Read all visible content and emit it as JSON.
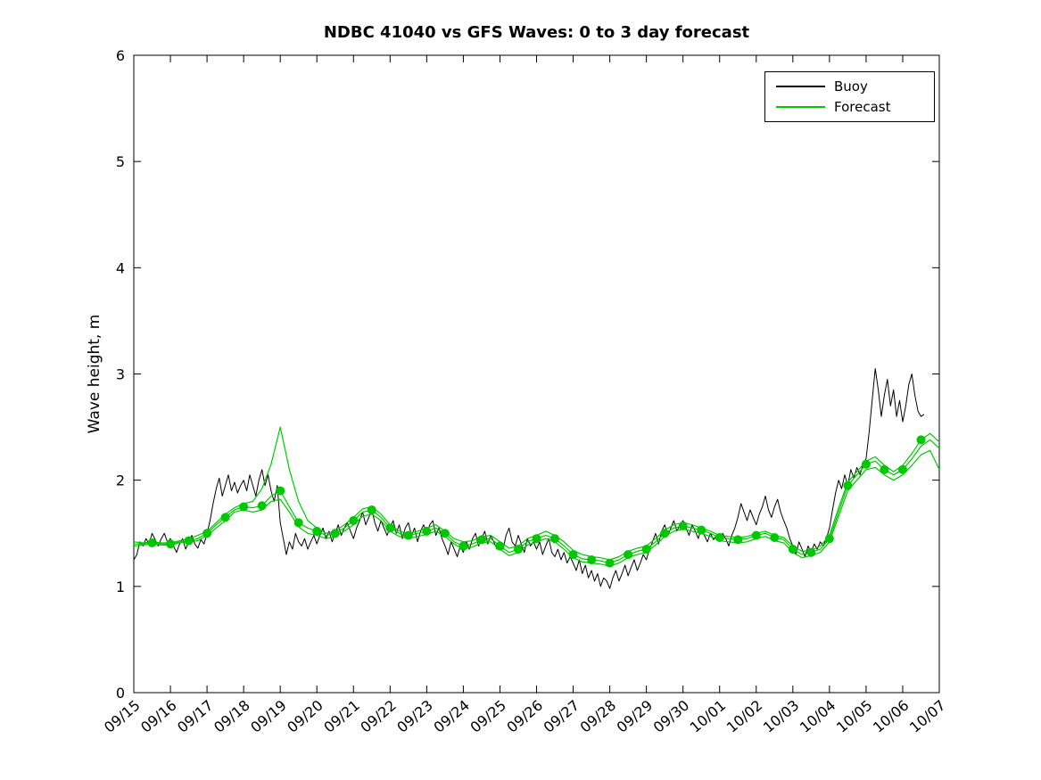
{
  "chart_data": {
    "type": "line",
    "title": "NDBC 41040 vs GFS Waves: 0 to 3 day forecast",
    "xlabel": "",
    "ylabel": "Wave height, m",
    "xlim": [
      0,
      22
    ],
    "ylim": [
      0,
      6
    ],
    "grid": false,
    "yticks": [
      0,
      1,
      2,
      3,
      4,
      5,
      6
    ],
    "xtick_labels": [
      "09/15",
      "09/16",
      "09/17",
      "09/18",
      "09/19",
      "09/20",
      "09/21",
      "09/22",
      "09/23",
      "09/24",
      "09/25",
      "09/26",
      "09/27",
      "09/28",
      "09/29",
      "09/30",
      "10/01",
      "10/02",
      "10/03",
      "10/04",
      "10/05",
      "10/06",
      "10/07"
    ],
    "legend": {
      "position": "top-right",
      "entries": [
        {
          "label": "Buoy",
          "color": "#000000"
        },
        {
          "label": "Forecast",
          "color": "#00c800"
        }
      ]
    },
    "colors": {
      "buoy": "#000000",
      "forecast": "#00c800",
      "axis": "#000000"
    },
    "series": [
      {
        "name": "Buoy",
        "kind": "line",
        "color": "#000000",
        "width": 1,
        "x_start": 0,
        "x_step": 0.083333,
        "values": [
          1.25,
          1.3,
          1.42,
          1.38,
          1.45,
          1.4,
          1.5,
          1.44,
          1.38,
          1.45,
          1.5,
          1.42,
          1.45,
          1.38,
          1.32,
          1.4,
          1.45,
          1.35,
          1.42,
          1.48,
          1.4,
          1.36,
          1.44,
          1.4,
          1.5,
          1.62,
          1.78,
          1.92,
          2.02,
          1.85,
          1.95,
          2.05,
          1.9,
          1.98,
          1.88,
          1.95,
          2.0,
          1.9,
          2.05,
          1.95,
          1.85,
          2.0,
          2.1,
          1.95,
          2.05,
          1.9,
          1.8,
          1.95,
          1.6,
          1.45,
          1.3,
          1.42,
          1.35,
          1.5,
          1.42,
          1.38,
          1.45,
          1.35,
          1.42,
          1.48,
          1.4,
          1.48,
          1.55,
          1.45,
          1.52,
          1.42,
          1.5,
          1.58,
          1.48,
          1.55,
          1.6,
          1.52,
          1.45,
          1.55,
          1.62,
          1.7,
          1.58,
          1.65,
          1.72,
          1.6,
          1.52,
          1.62,
          1.55,
          1.48,
          1.55,
          1.62,
          1.5,
          1.58,
          1.45,
          1.55,
          1.6,
          1.48,
          1.55,
          1.42,
          1.52,
          1.58,
          1.5,
          1.58,
          1.62,
          1.48,
          1.55,
          1.45,
          1.38,
          1.3,
          1.42,
          1.35,
          1.28,
          1.38,
          1.32,
          1.42,
          1.35,
          1.45,
          1.5,
          1.38,
          1.45,
          1.52,
          1.4,
          1.48,
          1.42,
          1.35,
          1.42,
          1.35,
          1.48,
          1.55,
          1.42,
          1.38,
          1.48,
          1.4,
          1.32,
          1.45,
          1.38,
          1.42,
          1.35,
          1.42,
          1.3,
          1.38,
          1.45,
          1.32,
          1.28,
          1.35,
          1.25,
          1.32,
          1.22,
          1.28,
          1.22,
          1.15,
          1.25,
          1.12,
          1.2,
          1.08,
          1.15,
          1.05,
          1.12,
          1.0,
          1.08,
          1.05,
          0.98,
          1.08,
          1.15,
          1.05,
          1.12,
          1.2,
          1.1,
          1.18,
          1.25,
          1.15,
          1.22,
          1.3,
          1.25,
          1.35,
          1.42,
          1.5,
          1.4,
          1.52,
          1.58,
          1.48,
          1.55,
          1.62,
          1.52,
          1.58,
          1.62,
          1.55,
          1.48,
          1.58,
          1.52,
          1.45,
          1.55,
          1.48,
          1.42,
          1.5,
          1.44,
          1.48,
          1.42,
          1.5,
          1.45,
          1.38,
          1.48,
          1.55,
          1.65,
          1.78,
          1.7,
          1.62,
          1.72,
          1.65,
          1.58,
          1.68,
          1.75,
          1.85,
          1.72,
          1.65,
          1.75,
          1.82,
          1.7,
          1.62,
          1.55,
          1.45,
          1.38,
          1.3,
          1.42,
          1.35,
          1.28,
          1.38,
          1.32,
          1.4,
          1.35,
          1.42,
          1.38,
          1.45,
          1.55,
          1.72,
          1.88,
          2.0,
          1.92,
          2.05,
          1.95,
          2.1,
          2.02,
          2.12,
          2.05,
          2.15,
          2.2,
          2.45,
          2.75,
          3.05,
          2.85,
          2.6,
          2.8,
          2.95,
          2.7,
          2.85,
          2.6,
          2.75,
          2.55,
          2.7,
          2.9,
          3.0,
          2.8,
          2.65,
          2.6,
          2.62
        ]
      },
      {
        "name": "Forecast member 1",
        "kind": "line",
        "color": "#00c800",
        "width": 1.2,
        "x_start": 0,
        "x_step": 0.25,
        "values": [
          1.4,
          1.4,
          1.41,
          1.4,
          1.4,
          1.42,
          1.43,
          1.45,
          1.5,
          1.58,
          1.65,
          1.72,
          1.75,
          1.74,
          1.76,
          1.85,
          1.9,
          1.75,
          1.6,
          1.55,
          1.52,
          1.48,
          1.5,
          1.55,
          1.62,
          1.7,
          1.72,
          1.65,
          1.55,
          1.5,
          1.48,
          1.5,
          1.52,
          1.55,
          1.5,
          1.42,
          1.38,
          1.4,
          1.44,
          1.45,
          1.38,
          1.32,
          1.35,
          1.42,
          1.45,
          1.48,
          1.45,
          1.38,
          1.3,
          1.26,
          1.25,
          1.24,
          1.22,
          1.25,
          1.3,
          1.33,
          1.35,
          1.42,
          1.5,
          1.55,
          1.57,
          1.55,
          1.53,
          1.5,
          1.46,
          1.45,
          1.44,
          1.45,
          1.48,
          1.5,
          1.46,
          1.44,
          1.35,
          1.3,
          1.32,
          1.35,
          1.45,
          1.7,
          1.95,
          2.05,
          2.15,
          2.18,
          2.1,
          2.05,
          2.1,
          2.2,
          2.32,
          2.38,
          2.3
        ]
      },
      {
        "name": "Forecast member 2",
        "kind": "line",
        "color": "#00c800",
        "width": 1.2,
        "x_start": 0,
        "x_step": 0.25,
        "values": [
          1.42,
          1.41,
          1.42,
          1.41,
          1.41,
          1.43,
          1.45,
          1.48,
          1.52,
          1.6,
          1.68,
          1.74,
          1.78,
          1.8,
          1.92,
          2.15,
          2.5,
          2.1,
          1.8,
          1.62,
          1.55,
          1.5,
          1.52,
          1.58,
          1.65,
          1.73,
          1.75,
          1.68,
          1.58,
          1.52,
          1.5,
          1.52,
          1.55,
          1.58,
          1.52,
          1.45,
          1.42,
          1.43,
          1.47,
          1.48,
          1.42,
          1.36,
          1.38,
          1.45,
          1.48,
          1.52,
          1.48,
          1.42,
          1.34,
          1.3,
          1.28,
          1.27,
          1.25,
          1.28,
          1.33,
          1.36,
          1.38,
          1.45,
          1.53,
          1.58,
          1.6,
          1.58,
          1.55,
          1.52,
          1.48,
          1.47,
          1.46,
          1.47,
          1.5,
          1.52,
          1.48,
          1.46,
          1.38,
          1.33,
          1.34,
          1.38,
          1.48,
          1.74,
          1.98,
          2.08,
          2.18,
          2.22,
          2.14,
          2.08,
          2.14,
          2.25,
          2.38,
          2.44,
          2.36
        ]
      },
      {
        "name": "Forecast member 3",
        "kind": "line",
        "color": "#00c800",
        "width": 1.2,
        "x_start": 0,
        "x_step": 0.25,
        "values": [
          1.38,
          1.39,
          1.4,
          1.39,
          1.39,
          1.41,
          1.42,
          1.43,
          1.48,
          1.55,
          1.62,
          1.7,
          1.72,
          1.7,
          1.72,
          1.8,
          1.82,
          1.7,
          1.56,
          1.5,
          1.48,
          1.45,
          1.47,
          1.52,
          1.58,
          1.66,
          1.68,
          1.62,
          1.52,
          1.47,
          1.45,
          1.47,
          1.49,
          1.52,
          1.47,
          1.4,
          1.35,
          1.37,
          1.41,
          1.42,
          1.35,
          1.29,
          1.32,
          1.39,
          1.42,
          1.45,
          1.42,
          1.35,
          1.27,
          1.23,
          1.22,
          1.21,
          1.19,
          1.22,
          1.27,
          1.3,
          1.32,
          1.39,
          1.47,
          1.52,
          1.54,
          1.52,
          1.5,
          1.47,
          1.43,
          1.42,
          1.41,
          1.42,
          1.45,
          1.47,
          1.43,
          1.41,
          1.32,
          1.27,
          1.29,
          1.32,
          1.42,
          1.66,
          1.9,
          2.0,
          2.1,
          2.12,
          2.05,
          2.0,
          2.05,
          2.14,
          2.24,
          2.28,
          2.1
        ]
      },
      {
        "name": "Forecast markers",
        "kind": "scatter",
        "color": "#00c800",
        "radius": 5,
        "x_start": 0.5,
        "x_step": 0.5,
        "values": [
          1.41,
          1.4,
          1.43,
          1.5,
          1.65,
          1.75,
          1.76,
          1.9,
          1.6,
          1.52,
          1.5,
          1.62,
          1.72,
          1.55,
          1.48,
          1.52,
          1.5,
          1.38,
          1.44,
          1.38,
          1.35,
          1.45,
          1.45,
          1.3,
          1.25,
          1.22,
          1.3,
          1.35,
          1.5,
          1.57,
          1.53,
          1.46,
          1.44,
          1.48,
          1.46,
          1.35,
          1.32,
          1.45,
          1.95,
          2.15,
          2.1,
          2.1,
          2.38
        ]
      }
    ]
  }
}
